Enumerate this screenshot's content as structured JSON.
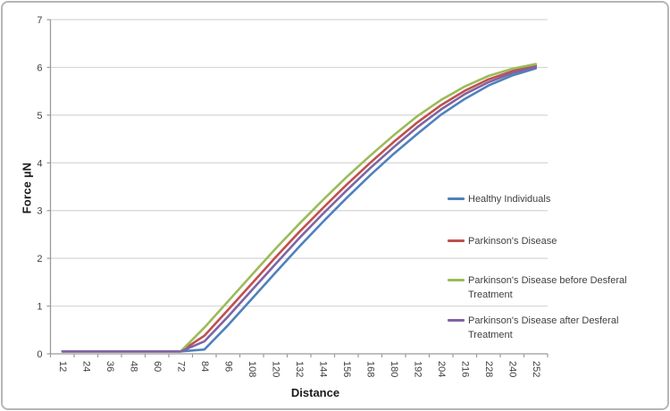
{
  "chart_data": {
    "type": "line",
    "title": "",
    "xlabel": "Distance",
    "ylabel": "Force µN",
    "ylim": [
      0,
      7
    ],
    "y_ticks": [
      0,
      1,
      2,
      3,
      4,
      5,
      6,
      7
    ],
    "grid": true,
    "legend_position": "right",
    "categories": [
      12,
      24,
      36,
      48,
      60,
      72,
      84,
      96,
      108,
      120,
      132,
      144,
      156,
      168,
      180,
      192,
      204,
      216,
      228,
      240,
      252
    ],
    "series": [
      {
        "name": "Healthy Individuals",
        "color": "#4F81BD",
        "values": [
          0.05,
          0.05,
          0.05,
          0.05,
          0.05,
          0.05,
          0.09,
          0.6,
          1.15,
          1.7,
          2.24,
          2.76,
          3.26,
          3.74,
          4.19,
          4.61,
          5.01,
          5.34,
          5.62,
          5.83,
          5.98
        ]
      },
      {
        "name": "Parkinson's Disease",
        "color": "#C0504D",
        "values": [
          0.05,
          0.05,
          0.05,
          0.05,
          0.05,
          0.05,
          0.38,
          0.92,
          1.47,
          2.02,
          2.55,
          3.05,
          3.54,
          4.0,
          4.44,
          4.85,
          5.21,
          5.51,
          5.75,
          5.92,
          6.04
        ]
      },
      {
        "name": "Parkinson's Disease before Desferal Treatment",
        "color": "#9BBB59",
        "values": [
          0.05,
          0.05,
          0.05,
          0.05,
          0.05,
          0.05,
          0.55,
          1.1,
          1.65,
          2.2,
          2.72,
          3.22,
          3.7,
          4.15,
          4.58,
          4.98,
          5.32,
          5.6,
          5.82,
          5.97,
          6.07
        ]
      },
      {
        "name": "Parkinson's Disease after Desferal Treatment",
        "color": "#8064A2",
        "values": [
          0.05,
          0.05,
          0.05,
          0.05,
          0.05,
          0.05,
          0.26,
          0.78,
          1.33,
          1.88,
          2.42,
          2.93,
          3.42,
          3.89,
          4.33,
          4.75,
          5.12,
          5.44,
          5.69,
          5.88,
          6.01
        ]
      }
    ],
    "axis_colors": {
      "gridline": "#d6d6d6",
      "axis_line": "#9b9b9b",
      "tick_label": "#3f3f3f"
    }
  }
}
